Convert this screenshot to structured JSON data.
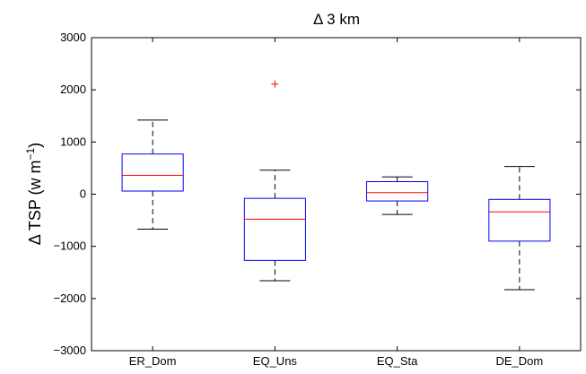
{
  "chart_data": {
    "type": "box",
    "title": "Δ 3 km",
    "ylabel": "Δ TSP (w m",
    "ylabel_superscript": "−1",
    "ylabel_close": ")",
    "xlabel": "",
    "ylim": [
      -3000,
      3000
    ],
    "yticks": [
      -3000,
      -2000,
      -1000,
      0,
      1000,
      2000,
      3000
    ],
    "ytick_labels": [
      "−3000",
      "−2000",
      "−1000",
      "0",
      "1000",
      "2000",
      "3000"
    ],
    "grid": false,
    "categories": [
      "ER_Dom",
      "EQ_Uns",
      "EQ_Sta",
      "DE_Dom"
    ],
    "boxes": [
      {
        "whisker_low": -670,
        "q1": 60,
        "median": 360,
        "q3": 770,
        "whisker_high": 1420,
        "outliers": []
      },
      {
        "whisker_low": -1660,
        "q1": -1270,
        "median": -480,
        "q3": -80,
        "whisker_high": 460,
        "outliers": [
          2110
        ]
      },
      {
        "whisker_low": -390,
        "q1": -130,
        "median": 30,
        "q3": 240,
        "whisker_high": 330,
        "outliers": []
      },
      {
        "whisker_low": -1830,
        "q1": -900,
        "median": -340,
        "q3": -100,
        "whisker_high": 530,
        "outliers": []
      }
    ],
    "colors": {
      "box": "#0000ff",
      "median": "#ff0000",
      "whisker": "#000000",
      "outlier": "#ff0000"
    }
  }
}
